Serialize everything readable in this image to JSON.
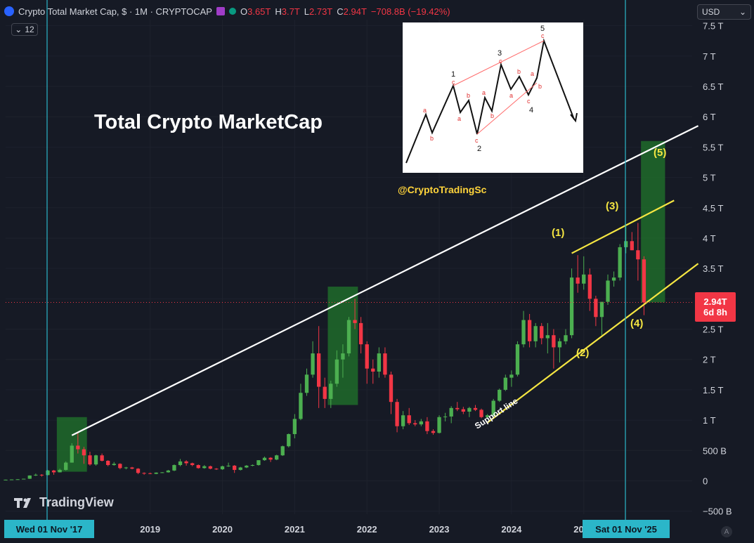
{
  "header": {
    "title": "Crypto Total Market Cap, $ · 1M · CRYPTOCAP",
    "ohlc": [
      {
        "label": "O",
        "value": "3.65T"
      },
      {
        "label": "H",
        "value": "3.7T"
      },
      {
        "label": "L",
        "value": "2.73T"
      },
      {
        "label": "C",
        "value": "2.94T"
      }
    ],
    "change": "−708.8B (−19.42%)",
    "indicator_count": "12",
    "currency": "USD"
  },
  "annotations": {
    "title": "Total Crypto MarketCap",
    "handle": "@CryptoTradingSc",
    "support_label": "Support line",
    "waves": [
      "(1)",
      "(2)",
      "(3)",
      "(4)",
      "(5)"
    ]
  },
  "elliott_inset": {
    "labels": [
      "1",
      "2",
      "3",
      "4",
      "5",
      "a",
      "b",
      "c"
    ]
  },
  "branding": {
    "name": "TradingView"
  },
  "crosshair": {
    "left_date": "Wed 01 Nov '17",
    "right_date": "Sat 01 Nov '25",
    "price_label": "2.94T",
    "countdown": "6d 8h"
  },
  "colors": {
    "background": "#161a25",
    "up": "#4caf50",
    "down": "#f23645",
    "crosshair": "#2bb6c9",
    "channel": "#f5e642",
    "resistance": "#ffffff"
  },
  "chart_data": {
    "type": "candlestick",
    "interval": "1M",
    "y_axis": {
      "tick_labels": [
        "−500 B",
        "0",
        "500 B",
        "1 T",
        "1.5 T",
        "2 T",
        "2.5 T",
        "3 T",
        "3.5 T",
        "4 T",
        "4.5 T",
        "5 T",
        "5.5 T",
        "6 T",
        "6.5 T",
        "7 T",
        "7.5 T"
      ],
      "tick_values": [
        -0.5,
        0,
        0.5,
        1,
        1.5,
        2,
        2.5,
        3,
        3.5,
        4,
        4.5,
        5,
        5.5,
        6,
        6.5,
        7,
        7.5
      ],
      "ylim": [
        -0.55,
        7.6
      ]
    },
    "x_axis": {
      "tick_labels": [
        "2019",
        "2020",
        "2021",
        "2022",
        "2023",
        "2024",
        "2025"
      ],
      "tick_dates": [
        "2019-01",
        "2020-01",
        "2021-01",
        "2022-01",
        "2023-01",
        "2024-01",
        "2025-01"
      ],
      "range": [
        "2017-01",
        "2026-07"
      ]
    },
    "candles": [
      {
        "d": "2017-01",
        "o": 0.018,
        "h": 0.02,
        "l": 0.016,
        "c": 0.019
      },
      {
        "d": "2017-02",
        "o": 0.019,
        "h": 0.024,
        "l": 0.018,
        "c": 0.023
      },
      {
        "d": "2017-03",
        "o": 0.023,
        "h": 0.028,
        "l": 0.022,
        "c": 0.026
      },
      {
        "d": "2017-04",
        "o": 0.026,
        "h": 0.035,
        "l": 0.025,
        "c": 0.034
      },
      {
        "d": "2017-05",
        "o": 0.034,
        "h": 0.09,
        "l": 0.032,
        "c": 0.088
      },
      {
        "d": "2017-06",
        "o": 0.088,
        "h": 0.12,
        "l": 0.08,
        "c": 0.1
      },
      {
        "d": "2017-07",
        "o": 0.1,
        "h": 0.11,
        "l": 0.07,
        "c": 0.095
      },
      {
        "d": "2017-08",
        "o": 0.095,
        "h": 0.18,
        "l": 0.09,
        "c": 0.17
      },
      {
        "d": "2017-09",
        "o": 0.17,
        "h": 0.18,
        "l": 0.1,
        "c": 0.14
      },
      {
        "d": "2017-10",
        "o": 0.14,
        "h": 0.2,
        "l": 0.14,
        "c": 0.18
      },
      {
        "d": "2017-11",
        "o": 0.18,
        "h": 0.32,
        "l": 0.17,
        "c": 0.3
      },
      {
        "d": "2017-12",
        "o": 0.3,
        "h": 0.62,
        "l": 0.3,
        "c": 0.58
      },
      {
        "d": "2018-01",
        "o": 0.58,
        "h": 0.81,
        "l": 0.45,
        "c": 0.52
      },
      {
        "d": "2018-02",
        "o": 0.52,
        "h": 0.56,
        "l": 0.28,
        "c": 0.42
      },
      {
        "d": "2018-03",
        "o": 0.42,
        "h": 0.48,
        "l": 0.25,
        "c": 0.27
      },
      {
        "d": "2018-04",
        "o": 0.27,
        "h": 0.43,
        "l": 0.25,
        "c": 0.42
      },
      {
        "d": "2018-05",
        "o": 0.42,
        "h": 0.45,
        "l": 0.32,
        "c": 0.33
      },
      {
        "d": "2018-06",
        "o": 0.33,
        "h": 0.34,
        "l": 0.24,
        "c": 0.26
      },
      {
        "d": "2018-07",
        "o": 0.26,
        "h": 0.31,
        "l": 0.25,
        "c": 0.28
      },
      {
        "d": "2018-08",
        "o": 0.28,
        "h": 0.29,
        "l": 0.19,
        "c": 0.21
      },
      {
        "d": "2018-09",
        "o": 0.21,
        "h": 0.23,
        "l": 0.19,
        "c": 0.22
      },
      {
        "d": "2018-10",
        "o": 0.22,
        "h": 0.23,
        "l": 0.19,
        "c": 0.2
      },
      {
        "d": "2018-11",
        "o": 0.2,
        "h": 0.21,
        "l": 0.11,
        "c": 0.13
      },
      {
        "d": "2018-12",
        "o": 0.13,
        "h": 0.14,
        "l": 0.1,
        "c": 0.125
      },
      {
        "d": "2019-01",
        "o": 0.125,
        "h": 0.135,
        "l": 0.11,
        "c": 0.115
      },
      {
        "d": "2019-02",
        "o": 0.115,
        "h": 0.14,
        "l": 0.11,
        "c": 0.135
      },
      {
        "d": "2019-03",
        "o": 0.135,
        "h": 0.145,
        "l": 0.13,
        "c": 0.14
      },
      {
        "d": "2019-04",
        "o": 0.14,
        "h": 0.18,
        "l": 0.135,
        "c": 0.17
      },
      {
        "d": "2019-05",
        "o": 0.17,
        "h": 0.27,
        "l": 0.16,
        "c": 0.26
      },
      {
        "d": "2019-06",
        "o": 0.26,
        "h": 0.36,
        "l": 0.24,
        "c": 0.32
      },
      {
        "d": "2019-07",
        "o": 0.32,
        "h": 0.34,
        "l": 0.25,
        "c": 0.29
      },
      {
        "d": "2019-08",
        "o": 0.29,
        "h": 0.3,
        "l": 0.24,
        "c": 0.26
      },
      {
        "d": "2019-09",
        "o": 0.26,
        "h": 0.27,
        "l": 0.2,
        "c": 0.21
      },
      {
        "d": "2019-10",
        "o": 0.21,
        "h": 0.26,
        "l": 0.2,
        "c": 0.24
      },
      {
        "d": "2019-11",
        "o": 0.24,
        "h": 0.25,
        "l": 0.19,
        "c": 0.2
      },
      {
        "d": "2019-12",
        "o": 0.2,
        "h": 0.21,
        "l": 0.18,
        "c": 0.19
      },
      {
        "d": "2020-01",
        "o": 0.19,
        "h": 0.25,
        "l": 0.18,
        "c": 0.24
      },
      {
        "d": "2020-02",
        "o": 0.24,
        "h": 0.3,
        "l": 0.23,
        "c": 0.25
      },
      {
        "d": "2020-03",
        "o": 0.25,
        "h": 0.26,
        "l": 0.13,
        "c": 0.18
      },
      {
        "d": "2020-04",
        "o": 0.18,
        "h": 0.23,
        "l": 0.17,
        "c": 0.22
      },
      {
        "d": "2020-05",
        "o": 0.22,
        "h": 0.26,
        "l": 0.21,
        "c": 0.25
      },
      {
        "d": "2020-06",
        "o": 0.25,
        "h": 0.27,
        "l": 0.24,
        "c": 0.26
      },
      {
        "d": "2020-07",
        "o": 0.26,
        "h": 0.34,
        "l": 0.25,
        "c": 0.34
      },
      {
        "d": "2020-08",
        "o": 0.34,
        "h": 0.4,
        "l": 0.33,
        "c": 0.38
      },
      {
        "d": "2020-09",
        "o": 0.38,
        "h": 0.39,
        "l": 0.31,
        "c": 0.35
      },
      {
        "d": "2020-10",
        "o": 0.35,
        "h": 0.43,
        "l": 0.34,
        "c": 0.42
      },
      {
        "d": "2020-11",
        "o": 0.42,
        "h": 0.58,
        "l": 0.41,
        "c": 0.57
      },
      {
        "d": "2020-12",
        "o": 0.57,
        "h": 0.78,
        "l": 0.55,
        "c": 0.77
      },
      {
        "d": "2021-01",
        "o": 0.77,
        "h": 1.1,
        "l": 0.7,
        "c": 1.02
      },
      {
        "d": "2021-02",
        "o": 1.02,
        "h": 1.6,
        "l": 1.0,
        "c": 1.45
      },
      {
        "d": "2021-03",
        "o": 1.45,
        "h": 1.85,
        "l": 1.4,
        "c": 1.75
      },
      {
        "d": "2021-04",
        "o": 1.75,
        "h": 2.3,
        "l": 1.7,
        "c": 2.1
      },
      {
        "d": "2021-05",
        "o": 2.1,
        "h": 2.55,
        "l": 1.2,
        "c": 1.55
      },
      {
        "d": "2021-06",
        "o": 1.55,
        "h": 1.7,
        "l": 1.2,
        "c": 1.35
      },
      {
        "d": "2021-07",
        "o": 1.35,
        "h": 1.65,
        "l": 1.2,
        "c": 1.6
      },
      {
        "d": "2021-08",
        "o": 1.6,
        "h": 2.15,
        "l": 1.55,
        "c": 2.0
      },
      {
        "d": "2021-09",
        "o": 2.0,
        "h": 2.25,
        "l": 1.7,
        "c": 2.1
      },
      {
        "d": "2021-10",
        "o": 2.1,
        "h": 2.7,
        "l": 2.05,
        "c": 2.65
      },
      {
        "d": "2021-11",
        "o": 2.65,
        "h": 3.0,
        "l": 2.5,
        "c": 2.6
      },
      {
        "d": "2021-12",
        "o": 2.6,
        "h": 2.7,
        "l": 2.1,
        "c": 2.25
      },
      {
        "d": "2022-01",
        "o": 2.25,
        "h": 2.3,
        "l": 1.6,
        "c": 1.85
      },
      {
        "d": "2022-02",
        "o": 1.85,
        "h": 2.0,
        "l": 1.6,
        "c": 1.8
      },
      {
        "d": "2022-03",
        "o": 1.8,
        "h": 2.2,
        "l": 1.7,
        "c": 2.1
      },
      {
        "d": "2022-04",
        "o": 2.1,
        "h": 2.2,
        "l": 1.7,
        "c": 1.75
      },
      {
        "d": "2022-05",
        "o": 1.75,
        "h": 1.8,
        "l": 1.1,
        "c": 1.3
      },
      {
        "d": "2022-06",
        "o": 1.3,
        "h": 1.35,
        "l": 0.8,
        "c": 0.9
      },
      {
        "d": "2022-07",
        "o": 0.9,
        "h": 1.15,
        "l": 0.85,
        "c": 1.08
      },
      {
        "d": "2022-08",
        "o": 1.08,
        "h": 1.2,
        "l": 0.92,
        "c": 0.95
      },
      {
        "d": "2022-09",
        "o": 0.95,
        "h": 1.0,
        "l": 0.9,
        "c": 0.93
      },
      {
        "d": "2022-10",
        "o": 0.93,
        "h": 1.02,
        "l": 0.9,
        "c": 0.98
      },
      {
        "d": "2022-11",
        "o": 0.98,
        "h": 1.05,
        "l": 0.77,
        "c": 0.82
      },
      {
        "d": "2022-12",
        "o": 0.82,
        "h": 0.85,
        "l": 0.76,
        "c": 0.79
      },
      {
        "d": "2023-01",
        "o": 0.79,
        "h": 1.08,
        "l": 0.78,
        "c": 1.05
      },
      {
        "d": "2023-02",
        "o": 1.05,
        "h": 1.12,
        "l": 0.98,
        "c": 1.06
      },
      {
        "d": "2023-03",
        "o": 1.06,
        "h": 1.23,
        "l": 0.95,
        "c": 1.2
      },
      {
        "d": "2023-04",
        "o": 1.2,
        "h": 1.3,
        "l": 1.15,
        "c": 1.18
      },
      {
        "d": "2023-05",
        "o": 1.18,
        "h": 1.22,
        "l": 1.1,
        "c": 1.14
      },
      {
        "d": "2023-06",
        "o": 1.14,
        "h": 1.22,
        "l": 1.05,
        "c": 1.2
      },
      {
        "d": "2023-07",
        "o": 1.2,
        "h": 1.25,
        "l": 1.15,
        "c": 1.17
      },
      {
        "d": "2023-08",
        "o": 1.17,
        "h": 1.19,
        "l": 1.03,
        "c": 1.05
      },
      {
        "d": "2023-09",
        "o": 1.05,
        "h": 1.1,
        "l": 1.02,
        "c": 1.08
      },
      {
        "d": "2023-10",
        "o": 1.08,
        "h": 1.35,
        "l": 1.06,
        "c": 1.32
      },
      {
        "d": "2023-11",
        "o": 1.32,
        "h": 1.52,
        "l": 1.3,
        "c": 1.5
      },
      {
        "d": "2023-12",
        "o": 1.5,
        "h": 1.75,
        "l": 1.48,
        "c": 1.7
      },
      {
        "d": "2024-01",
        "o": 1.7,
        "h": 1.82,
        "l": 1.55,
        "c": 1.75
      },
      {
        "d": "2024-02",
        "o": 1.75,
        "h": 2.3,
        "l": 1.72,
        "c": 2.25
      },
      {
        "d": "2024-03",
        "o": 2.25,
        "h": 2.8,
        "l": 2.2,
        "c": 2.65
      },
      {
        "d": "2024-04",
        "o": 2.65,
        "h": 2.75,
        "l": 2.2,
        "c": 2.3
      },
      {
        "d": "2024-05",
        "o": 2.3,
        "h": 2.6,
        "l": 2.2,
        "c": 2.55
      },
      {
        "d": "2024-06",
        "o": 2.55,
        "h": 2.6,
        "l": 2.25,
        "c": 2.35
      },
      {
        "d": "2024-07",
        "o": 2.35,
        "h": 2.6,
        "l": 2.1,
        "c": 2.4
      },
      {
        "d": "2024-08",
        "o": 2.4,
        "h": 2.5,
        "l": 1.85,
        "c": 2.2
      },
      {
        "d": "2024-09",
        "o": 2.2,
        "h": 2.35,
        "l": 1.95,
        "c": 2.3
      },
      {
        "d": "2024-10",
        "o": 2.3,
        "h": 2.5,
        "l": 2.25,
        "c": 2.4
      },
      {
        "d": "2024-11",
        "o": 2.4,
        "h": 3.5,
        "l": 2.35,
        "c": 3.35
      },
      {
        "d": "2024-12",
        "o": 3.35,
        "h": 3.72,
        "l": 3.1,
        "c": 3.25
      },
      {
        "d": "2025-01",
        "o": 3.25,
        "h": 3.7,
        "l": 3.15,
        "c": 3.4
      },
      {
        "d": "2025-02",
        "o": 3.4,
        "h": 3.5,
        "l": 2.8,
        "c": 3.0
      },
      {
        "d": "2025-03",
        "o": 3.0,
        "h": 3.05,
        "l": 2.55,
        "c": 2.7
      },
      {
        "d": "2025-04",
        "o": 2.7,
        "h": 2.95,
        "l": 2.4,
        "c": 2.95
      },
      {
        "d": "2025-05",
        "o": 2.95,
        "h": 3.4,
        "l": 2.9,
        "c": 3.3
      },
      {
        "d": "2025-06",
        "o": 3.3,
        "h": 3.45,
        "l": 3.2,
        "c": 3.35
      },
      {
        "d": "2025-07",
        "o": 3.35,
        "h": 3.9,
        "l": 3.3,
        "c": 3.85
      },
      {
        "d": "2025-08",
        "o": 3.85,
        "h": 4.2,
        "l": 3.75,
        "c": 3.95
      },
      {
        "d": "2025-09",
        "o": 3.95,
        "h": 4.1,
        "l": 3.8,
        "c": 3.8
      },
      {
        "d": "2025-10",
        "o": 3.8,
        "h": 4.25,
        "l": 3.3,
        "c": 3.65
      },
      {
        "d": "2025-11",
        "o": 3.65,
        "h": 3.7,
        "l": 2.73,
        "c": 2.94
      }
    ],
    "highlight_zones": [
      {
        "from": "2017-10",
        "to": "2018-02",
        "low": 0.15,
        "high": 1.05
      },
      {
        "from": "2021-07",
        "to": "2021-11",
        "low": 1.25,
        "high": 3.2
      },
      {
        "from": "2025-11",
        "to": "2026-02",
        "low": 2.94,
        "high": 5.6
      }
    ],
    "lines": [
      {
        "name": "resistance",
        "from": {
          "d": "2017-12",
          "v": 0.75
        },
        "to": {
          "d": "2026-08",
          "v": 5.85
        }
      },
      {
        "name": "support",
        "from": {
          "d": "2023-09",
          "v": 0.96
        },
        "to": {
          "d": "2026-08",
          "v": 3.58
        }
      },
      {
        "name": "channel-top",
        "from": {
          "d": "2024-11",
          "v": 3.75
        },
        "to": {
          "d": "2026-04",
          "v": 4.62
        }
      }
    ]
  }
}
